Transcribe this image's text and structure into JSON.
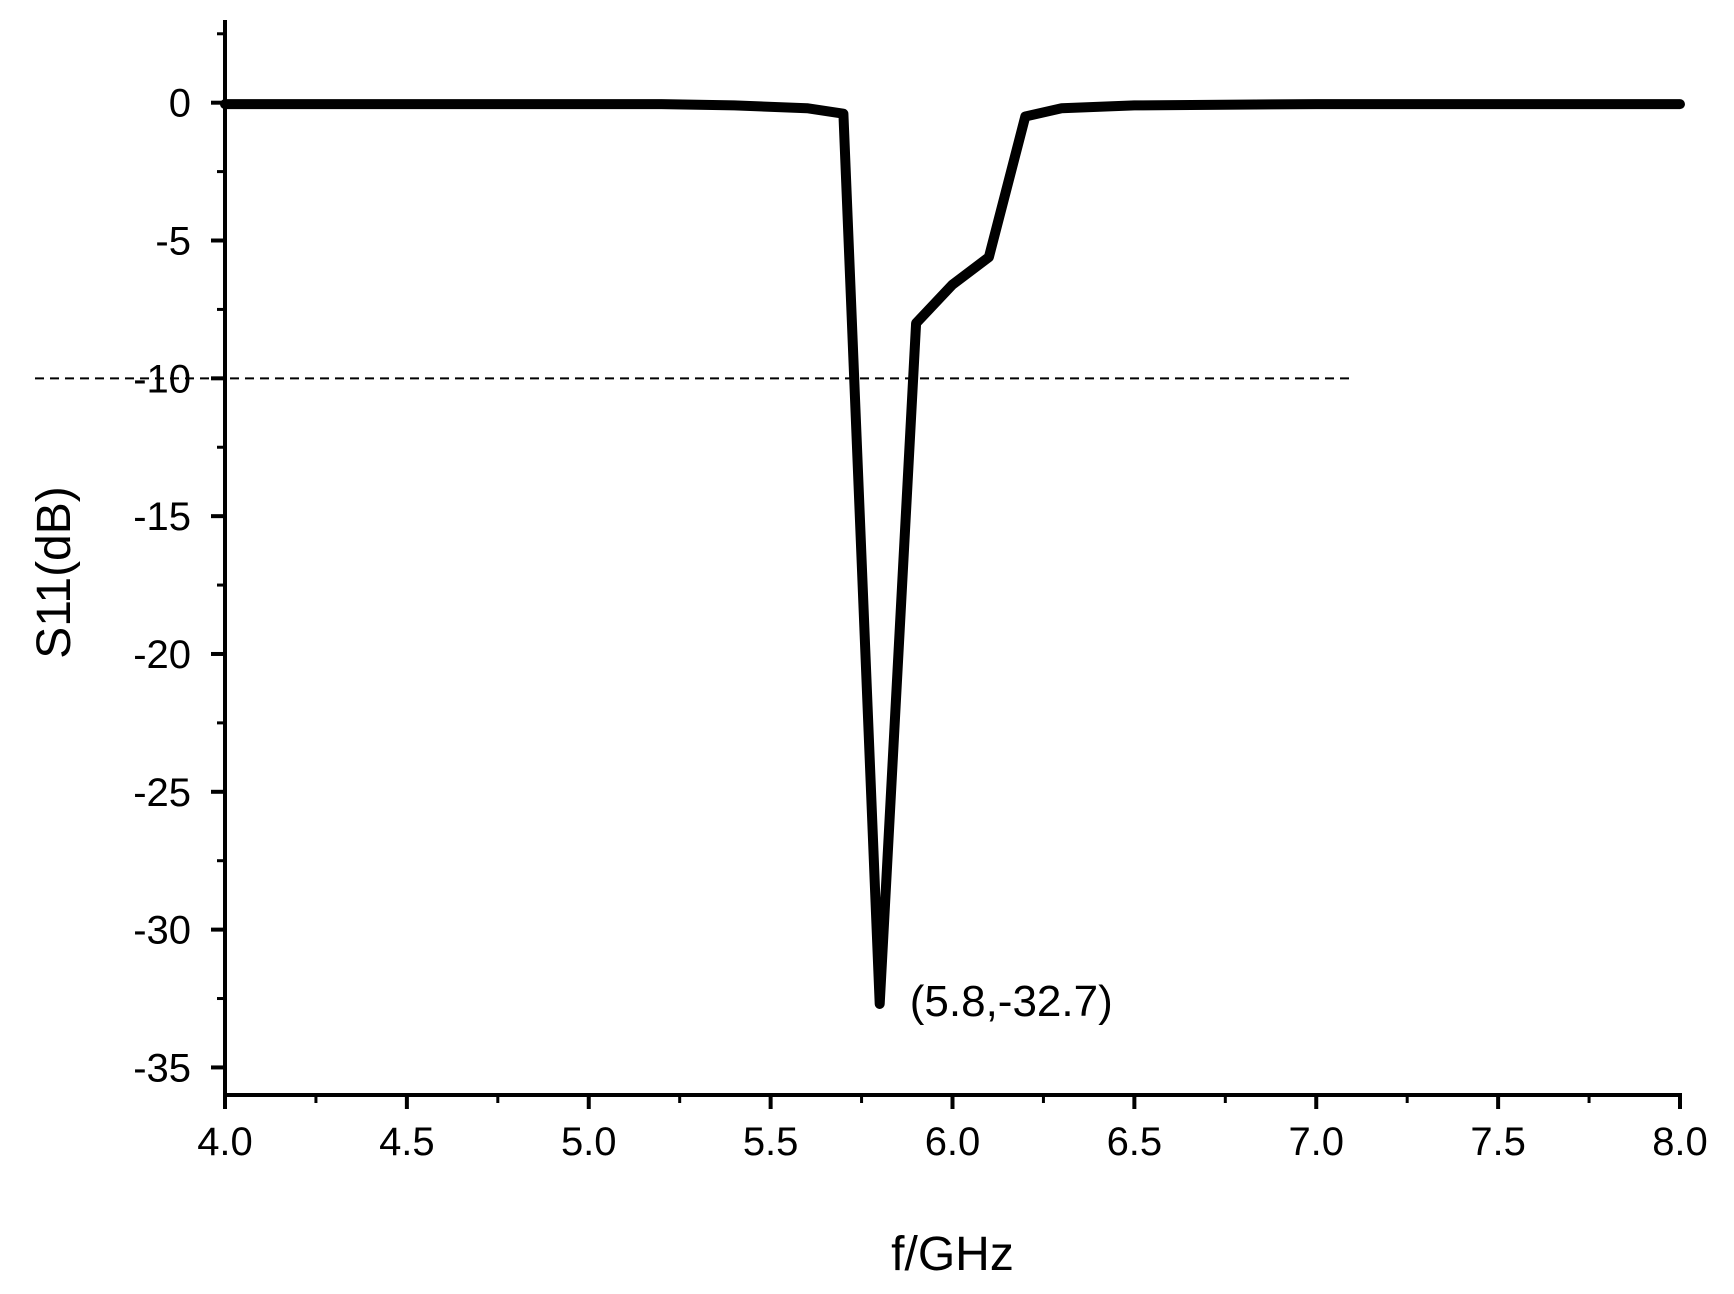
{
  "chart_data": {
    "type": "line",
    "xlabel": "f/GHz",
    "ylabel": "S11(dB)",
    "xlim": [
      4.0,
      8.0
    ],
    "ylim": [
      -36,
      3
    ],
    "x_ticks": [
      4.0,
      4.5,
      5.0,
      5.5,
      6.0,
      6.5,
      7.0,
      7.5,
      8.0
    ],
    "x_tick_labels": [
      "4.0",
      "4.5",
      "5.0",
      "5.5",
      "6.0",
      "6.5",
      "7.0",
      "7.5",
      "8.0"
    ],
    "x_minor_step": 0.25,
    "y_ticks": [
      0,
      -5,
      -10,
      -15,
      -20,
      -25,
      -30,
      -35
    ],
    "y_tick_labels": [
      "0",
      "-5",
      "-10",
      "-15",
      "-20",
      "-25",
      "-30",
      "-35"
    ],
    "y_minor_step": 2.5,
    "grid": false,
    "series": [
      {
        "x": [
          4.0,
          4.5,
          5.0,
          5.2,
          5.4,
          5.6,
          5.7,
          5.8,
          5.9,
          6.0,
          6.1,
          6.2,
          6.3,
          6.5,
          7.0,
          8.0
        ],
        "y": [
          -0.05,
          -0.05,
          -0.05,
          -0.05,
          -0.1,
          -0.2,
          -0.4,
          -32.7,
          -8.0,
          -6.6,
          -5.6,
          -0.5,
          -0.2,
          -0.1,
          -0.05,
          -0.05
        ]
      }
    ],
    "reference_line": {
      "y": -10,
      "x_end": 7.1,
      "style": "dashed"
    },
    "annotations": [
      {
        "text": "(5.8,-32.7)",
        "x": 5.8,
        "y": -32.7
      }
    ]
  }
}
